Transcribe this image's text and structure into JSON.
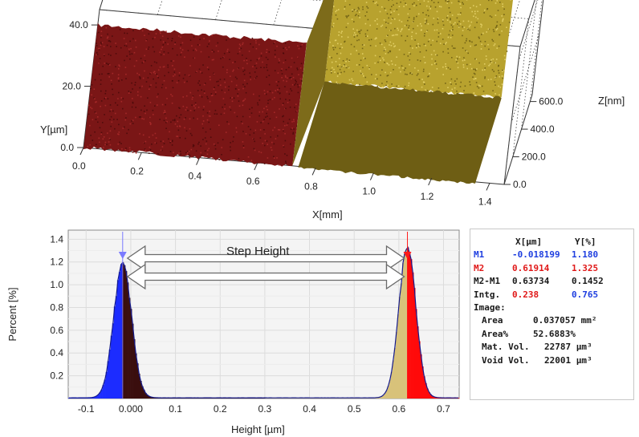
{
  "chart_data": [
    {
      "type": "surface-3d",
      "xlabel": "X[mm]",
      "ylabel": "Y[µm]",
      "zlabel": "Z[nm]",
      "x_ticks": [
        "0.0",
        "0.2",
        "0.4",
        "0.6",
        "0.8",
        "1.0",
        "1.2",
        "1.4"
      ],
      "y_ticks": [
        "0.0",
        "20.0",
        "40.0"
      ],
      "z_ticks": [
        "0.0",
        "200.0",
        "400.0",
        "600.0"
      ],
      "xlim": [
        0,
        1.45
      ],
      "ylim": [
        0,
        45
      ],
      "zlim": [
        0,
        650
      ],
      "regions": [
        {
          "x_range": [
            0.0,
            0.72
          ],
          "z_level": 0,
          "color": "#7a1616"
        },
        {
          "x_range": [
            0.74,
            1.35
          ],
          "z_level": 610,
          "color": "#b8a22e"
        }
      ],
      "grid": true
    },
    {
      "type": "histogram",
      "xlabel": "Height [µm]",
      "ylabel": "Percent [%]",
      "x_ticks": [
        "-0.1",
        "0.000",
        "0.1",
        "0.2",
        "0.3",
        "0.4",
        "0.5",
        "0.6",
        "0.7"
      ],
      "y_ticks": [
        "0.2",
        "0.4",
        "0.6",
        "0.8",
        "1.0",
        "1.2",
        "1.4"
      ],
      "xlim": [
        -0.14,
        0.735
      ],
      "ylim": [
        0,
        1.48
      ],
      "peaks": [
        {
          "center": -0.018199,
          "height": 1.18,
          "sigma": 0.02
        },
        {
          "center": 0.61914,
          "height": 1.325,
          "sigma": 0.019
        }
      ],
      "markers": [
        {
          "name": "M1",
          "x": -0.018199,
          "y": 1.18,
          "color": "#7a7aff"
        },
        {
          "name": "M2",
          "x": 0.61914,
          "y": 1.325,
          "color": "#ff1a1a"
        }
      ],
      "annotation": "Step Height",
      "fill_colors": {
        "left_low": "#1c2cff",
        "left_high": "#3a0e0e",
        "right_low": "#d8c27a",
        "right_high": "#ff0a0a",
        "outline": "#141a8c"
      },
      "grid": true
    }
  ],
  "info_panel": {
    "header": [
      "X[µm]",
      "Y[%]"
    ],
    "m1": {
      "label": "M1",
      "x": "-0.018199",
      "y": "1.180"
    },
    "m2": {
      "label": "M2",
      "x": "0.61914",
      "y": "1.325"
    },
    "m2m1": {
      "label": "M2-M1",
      "x": "0.63734",
      "y": "0.1452"
    },
    "intg": {
      "label": "Intg.",
      "a": "0.238",
      "b": "0.765"
    },
    "image_title": "Image:",
    "area": {
      "label": "Area",
      "value": "0.037057 mm²"
    },
    "area_pct": {
      "label": "Area%",
      "value": "52.6883%"
    },
    "mat_vol": {
      "label": "Mat. Vol.",
      "value": "22787 µm³"
    },
    "void_vol": {
      "label": "Void Vol.",
      "value": "22001 µm³"
    }
  }
}
